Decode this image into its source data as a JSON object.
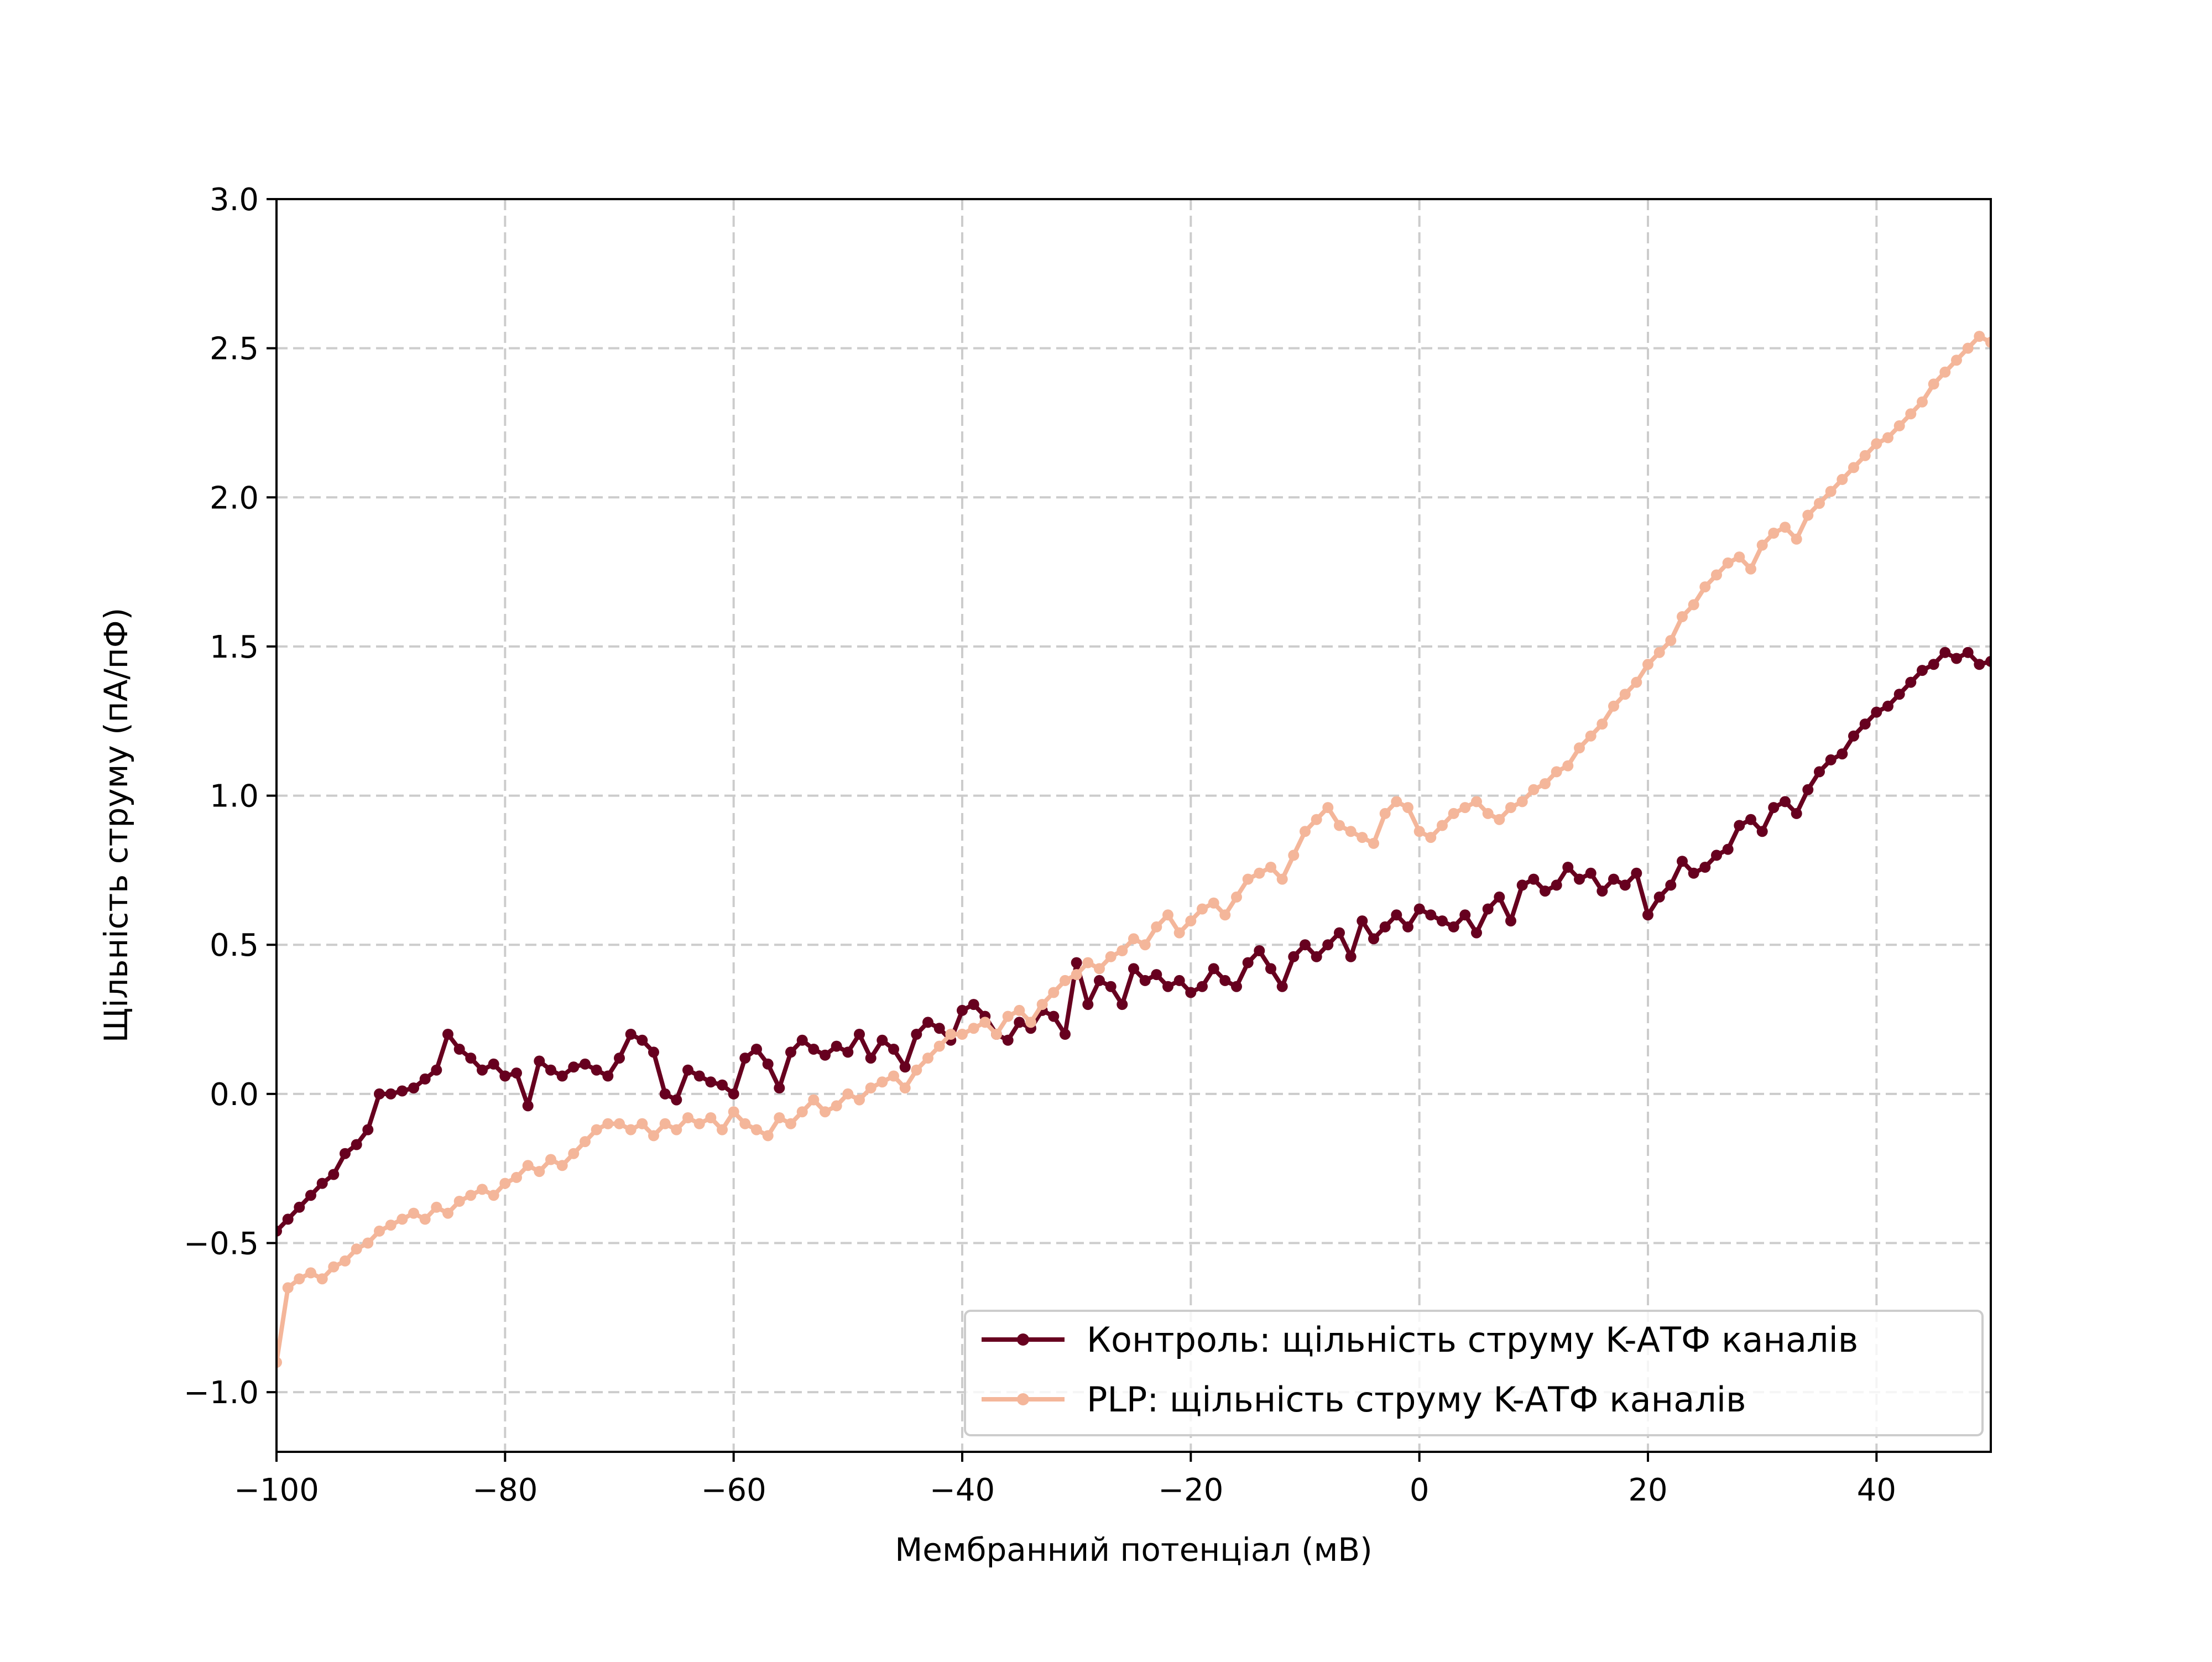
{
  "chart_data": {
    "type": "line",
    "title": "",
    "xlabel": "Мембранний потенціал (мВ)",
    "ylabel": "Щільність струму (пА/пФ)",
    "xlim": [
      -100,
      50
    ],
    "ylim": [
      -1.2,
      3.0
    ],
    "xticks": [
      -100,
      -80,
      -60,
      -40,
      -20,
      0,
      20,
      40
    ],
    "xtick_labels": [
      "−100",
      "−80",
      "−60",
      "−40",
      "−20",
      "0",
      "20",
      "40"
    ],
    "yticks": [
      -1.0,
      -0.5,
      0.0,
      0.5,
      1.0,
      1.5,
      2.0,
      2.5,
      3.0
    ],
    "ytick_labels": [
      "−1.0",
      "−0.5",
      "0.0",
      "0.5",
      "1.0",
      "1.5",
      "2.0",
      "2.5",
      "3.0"
    ],
    "grid": true,
    "legend_position": "lower-right",
    "series": [
      {
        "name": "Контроль: щільність струму K-АТФ каналів",
        "color": "#67001f",
        "marker": "circle",
        "x": [
          -100,
          -99,
          -98,
          -97,
          -96,
          -95,
          -94,
          -93,
          -92,
          -91,
          -90,
          -89,
          -88,
          -87,
          -86,
          -85,
          -84,
          -83,
          -82,
          -81,
          -80,
          -79,
          -78,
          -77,
          -76,
          -75,
          -74,
          -73,
          -72,
          -71,
          -70,
          -69,
          -68,
          -67,
          -66,
          -65,
          -64,
          -63,
          -62,
          -61,
          -60,
          -59,
          -58,
          -57,
          -56,
          -55,
          -54,
          -53,
          -52,
          -51,
          -50,
          -49,
          -48,
          -47,
          -46,
          -45,
          -44,
          -43,
          -42,
          -41,
          -40,
          -39,
          -38,
          -37,
          -36,
          -35,
          -34,
          -33,
          -32,
          -31,
          -30,
          -29,
          -28,
          -27,
          -26,
          -25,
          -24,
          -23,
          -22,
          -21,
          -20,
          -19,
          -18,
          -17,
          -16,
          -15,
          -14,
          -13,
          -12,
          -11,
          -10,
          -9,
          -8,
          -7,
          -6,
          -5,
          -4,
          -3,
          -2,
          -1,
          0,
          1,
          2,
          3,
          4,
          5,
          6,
          7,
          8,
          9,
          10,
          11,
          12,
          13,
          14,
          15,
          16,
          17,
          18,
          19,
          20,
          21,
          22,
          23,
          24,
          25,
          26,
          27,
          28,
          29,
          30,
          31,
          32,
          33,
          34,
          35,
          36,
          37,
          38,
          39,
          40,
          41,
          42,
          43,
          44,
          45,
          46,
          47,
          48,
          49,
          50
        ],
        "y": [
          -0.46,
          -0.42,
          -0.38,
          -0.34,
          -0.3,
          -0.27,
          -0.2,
          -0.17,
          -0.12,
          0.0,
          0.0,
          0.01,
          0.02,
          0.05,
          0.08,
          0.2,
          0.15,
          0.12,
          0.08,
          0.1,
          0.06,
          0.07,
          -0.04,
          0.11,
          0.08,
          0.06,
          0.09,
          0.1,
          0.08,
          0.06,
          0.12,
          0.2,
          0.18,
          0.14,
          0.0,
          -0.02,
          0.08,
          0.06,
          0.04,
          0.03,
          0.0,
          0.12,
          0.15,
          0.1,
          0.02,
          0.14,
          0.18,
          0.15,
          0.13,
          0.16,
          0.14,
          0.2,
          0.12,
          0.18,
          0.15,
          0.09,
          0.2,
          0.24,
          0.22,
          0.18,
          0.28,
          0.3,
          0.26,
          0.2,
          0.18,
          0.24,
          0.22,
          0.28,
          0.26,
          0.2,
          0.44,
          0.3,
          0.38,
          0.36,
          0.3,
          0.42,
          0.38,
          0.4,
          0.36,
          0.38,
          0.34,
          0.36,
          0.42,
          0.38,
          0.36,
          0.44,
          0.48,
          0.42,
          0.36,
          0.46,
          0.5,
          0.46,
          0.5,
          0.54,
          0.46,
          0.58,
          0.52,
          0.56,
          0.6,
          0.56,
          0.62,
          0.6,
          0.58,
          0.56,
          0.6,
          0.54,
          0.62,
          0.66,
          0.58,
          0.7,
          0.72,
          0.68,
          0.7,
          0.76,
          0.72,
          0.74,
          0.68,
          0.72,
          0.7,
          0.74,
          0.6,
          0.66,
          0.7,
          0.78,
          0.74,
          0.76,
          0.8,
          0.82,
          0.9,
          0.92,
          0.88,
          0.96,
          0.98,
          0.94,
          1.02,
          1.08,
          1.12,
          1.14,
          1.2,
          1.24,
          1.28,
          1.3,
          1.34,
          1.38,
          1.42,
          1.44,
          1.48,
          1.46,
          1.48,
          1.44,
          1.45
        ]
      },
      {
        "name": "PLP: щільність струму K-АТФ каналів",
        "color": "#f4b69a",
        "marker": "circle",
        "x": [
          -100,
          -99,
          -98,
          -97,
          -96,
          -95,
          -94,
          -93,
          -92,
          -91,
          -90,
          -89,
          -88,
          -87,
          -86,
          -85,
          -84,
          -83,
          -82,
          -81,
          -80,
          -79,
          -78,
          -77,
          -76,
          -75,
          -74,
          -73,
          -72,
          -71,
          -70,
          -69,
          -68,
          -67,
          -66,
          -65,
          -64,
          -63,
          -62,
          -61,
          -60,
          -59,
          -58,
          -57,
          -56,
          -55,
          -54,
          -53,
          -52,
          -51,
          -50,
          -49,
          -48,
          -47,
          -46,
          -45,
          -44,
          -43,
          -42,
          -41,
          -40,
          -39,
          -38,
          -37,
          -36,
          -35,
          -34,
          -33,
          -32,
          -31,
          -30,
          -29,
          -28,
          -27,
          -26,
          -25,
          -24,
          -23,
          -22,
          -21,
          -20,
          -19,
          -18,
          -17,
          -16,
          -15,
          -14,
          -13,
          -12,
          -11,
          -10,
          -9,
          -8,
          -7,
          -6,
          -5,
          -4,
          -3,
          -2,
          -1,
          0,
          1,
          2,
          3,
          4,
          5,
          6,
          7,
          8,
          9,
          10,
          11,
          12,
          13,
          14,
          15,
          16,
          17,
          18,
          19,
          20,
          21,
          22,
          23,
          24,
          25,
          26,
          27,
          28,
          29,
          30,
          31,
          32,
          33,
          34,
          35,
          36,
          37,
          38,
          39,
          40,
          41,
          42,
          43,
          44,
          45,
          46,
          47,
          48,
          49,
          50
        ],
        "y": [
          -0.9,
          -0.65,
          -0.62,
          -0.6,
          -0.62,
          -0.58,
          -0.56,
          -0.52,
          -0.5,
          -0.46,
          -0.44,
          -0.42,
          -0.4,
          -0.42,
          -0.38,
          -0.4,
          -0.36,
          -0.34,
          -0.32,
          -0.34,
          -0.3,
          -0.28,
          -0.24,
          -0.26,
          -0.22,
          -0.24,
          -0.2,
          -0.16,
          -0.12,
          -0.1,
          -0.1,
          -0.12,
          -0.1,
          -0.14,
          -0.1,
          -0.12,
          -0.08,
          -0.1,
          -0.08,
          -0.12,
          -0.06,
          -0.1,
          -0.12,
          -0.14,
          -0.08,
          -0.1,
          -0.06,
          -0.02,
          -0.06,
          -0.04,
          0.0,
          -0.02,
          0.02,
          0.04,
          0.06,
          0.02,
          0.08,
          0.12,
          0.16,
          0.2,
          0.2,
          0.22,
          0.24,
          0.2,
          0.26,
          0.28,
          0.24,
          0.3,
          0.34,
          0.38,
          0.4,
          0.44,
          0.42,
          0.46,
          0.48,
          0.52,
          0.5,
          0.56,
          0.6,
          0.54,
          0.58,
          0.62,
          0.64,
          0.6,
          0.66,
          0.72,
          0.74,
          0.76,
          0.72,
          0.8,
          0.88,
          0.92,
          0.96,
          0.9,
          0.88,
          0.86,
          0.84,
          0.94,
          0.98,
          0.96,
          0.88,
          0.86,
          0.9,
          0.94,
          0.96,
          0.98,
          0.94,
          0.92,
          0.96,
          0.98,
          1.02,
          1.04,
          1.08,
          1.1,
          1.16,
          1.2,
          1.24,
          1.3,
          1.34,
          1.38,
          1.44,
          1.48,
          1.52,
          1.6,
          1.64,
          1.7,
          1.74,
          1.78,
          1.8,
          1.76,
          1.84,
          1.88,
          1.9,
          1.86,
          1.94,
          1.98,
          2.02,
          2.06,
          2.1,
          2.14,
          2.18,
          2.2,
          2.24,
          2.28,
          2.32,
          2.38,
          2.42,
          2.46,
          2.5,
          2.54,
          2.52
        ]
      }
    ]
  }
}
